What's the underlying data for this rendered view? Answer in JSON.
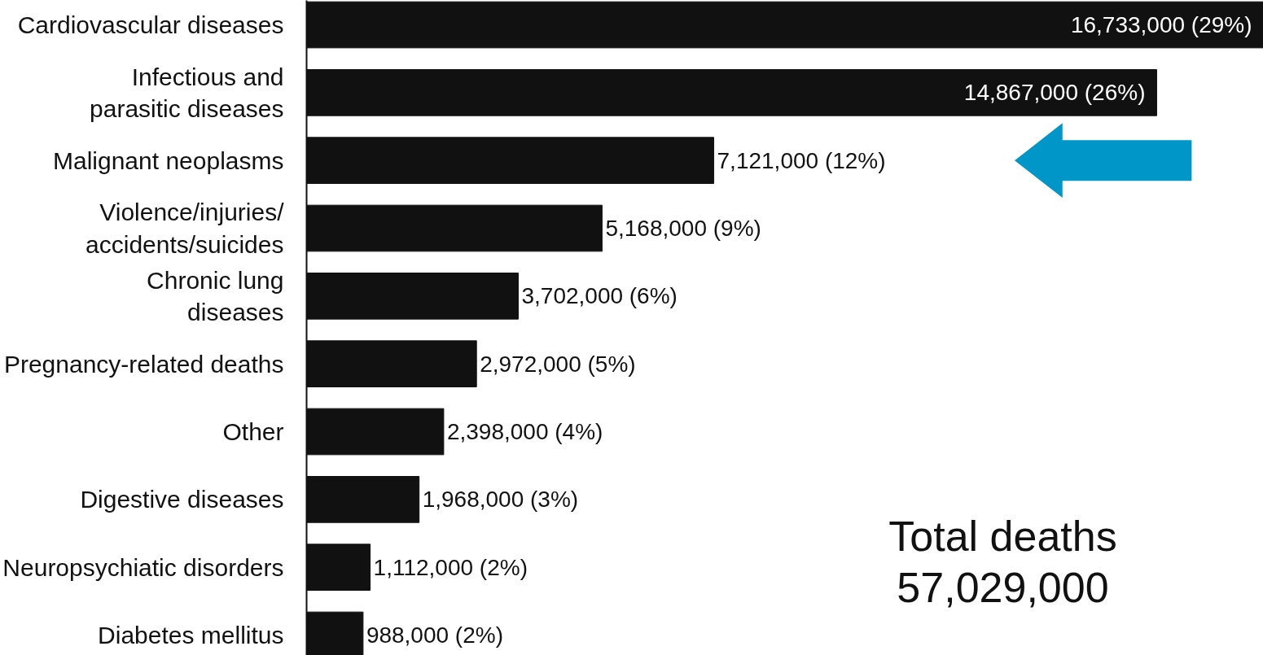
{
  "chart_data": {
    "type": "bar",
    "orientation": "horizontal",
    "categories": [
      "Cardiovascular diseases",
      "Infectious and\nparasitic diseases",
      "Malignant neoplasms",
      "Violence/injuries/\naccidents/suicides",
      "Chronic lung\ndiseases",
      "Pregnancy-related deaths",
      "Other",
      "Digestive diseases",
      "Neuropsychiatic disorders",
      "Diabetes mellitus"
    ],
    "values": [
      16733000,
      14867000,
      7121000,
      5168000,
      3702000,
      2972000,
      2398000,
      1968000,
      1112000,
      988000
    ],
    "value_labels": [
      "16,733,000 (29%)",
      "14,867,000 (26%)",
      "7,121,000 (12%)",
      "5,168,000 (9%)",
      "3,702,000 (6%)",
      "2,972,000 (5%)",
      "2,398,000 (4%)",
      "1,968,000 (3%)",
      "1,112,000 (2%)",
      "988,000 (2%)"
    ],
    "color": "#111111",
    "grid": false,
    "annotations": [
      "Total deaths\n57,029,000"
    ]
  }
}
